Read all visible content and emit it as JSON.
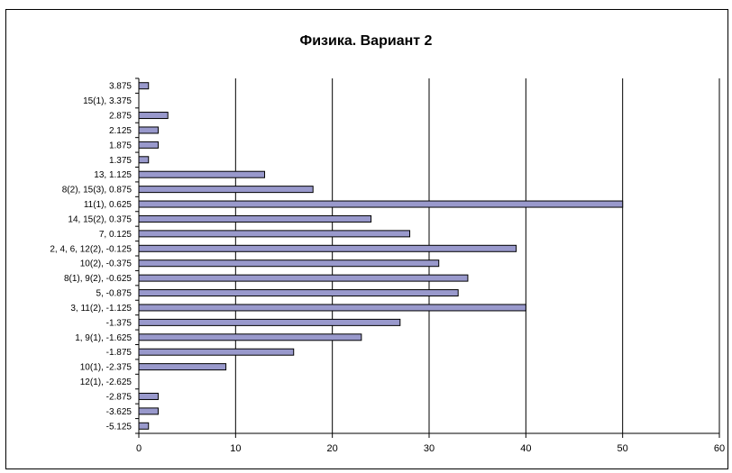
{
  "chart_data": {
    "type": "bar",
    "orientation": "horizontal",
    "title": "Физика. Вариант 2",
    "xlabel": "",
    "ylabel": "",
    "xlim": [
      0,
      60
    ],
    "x_ticks": [
      "0",
      "10",
      "20",
      "30",
      "40",
      "50",
      "60"
    ],
    "grid": "vertical major gridlines",
    "legend": "none",
    "categories": [
      "3.875",
      "15(1), 3.375",
      "2.875",
      "2.125",
      "1.875",
      "1.375",
      "13, 1.125",
      "8(2), 15(3), 0.875",
      "11(1), 0.625",
      "14, 15(2), 0.375",
      "7, 0.125",
      "2, 4, 6, 12(2), -0.125",
      "10(2), -0.375",
      "8(1), 9(2), -0.625",
      "5, -0.875",
      "3, 11(2), -1.125",
      "-1.375",
      "1, 9(1), -1.625",
      "-1.875",
      "10(1), -2.375",
      "12(1), -2.625",
      "-2.875",
      "-3.625",
      "-5.125"
    ],
    "values": [
      1,
      0,
      3,
      2,
      2,
      1,
      13,
      18,
      50,
      24,
      28,
      39,
      31,
      34,
      33,
      40,
      27,
      23,
      16,
      9,
      0,
      2,
      2,
      1
    ],
    "colors": {
      "bar_fill": "#9999cc",
      "bar_stroke": "#000000",
      "grid": "#000000",
      "axis": "#000000"
    }
  }
}
